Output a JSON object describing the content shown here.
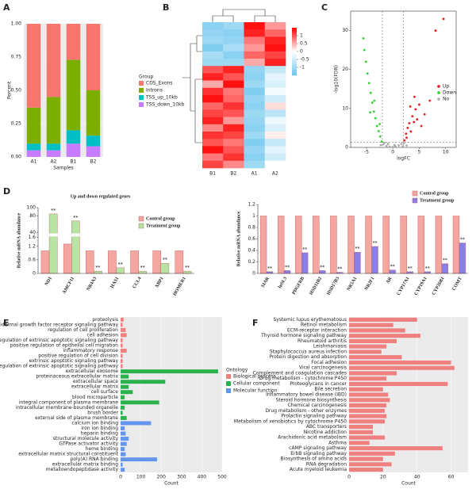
{
  "chart_data": [
    {
      "panel": "A",
      "type": "stacked_bar",
      "xlabel": "Samples",
      "ylabel": "Percent",
      "legend_title": "Group",
      "categories": [
        "A1",
        "A2",
        "B1",
        "B2"
      ],
      "series": [
        {
          "name": "CDS_Exons",
          "color": "#f8766d",
          "values": [
            0.63,
            0.55,
            0.27,
            0.5
          ]
        },
        {
          "name": "Introns",
          "color": "#7cae00",
          "values": [
            0.27,
            0.35,
            0.53,
            0.34
          ]
        },
        {
          "name": "TSS_up_10kb",
          "color": "#00bfc4",
          "values": [
            0.05,
            0.05,
            0.1,
            0.08
          ]
        },
        {
          "name": "TSS_down_10kb",
          "color": "#c77cff",
          "values": [
            0.05,
            0.05,
            0.1,
            0.08
          ]
        }
      ],
      "ylim": [
        0,
        1
      ],
      "yticks": [
        {
          "value": 0,
          "label": "0.00"
        },
        {
          "value": 0.25,
          "label": "0.25"
        },
        {
          "value": 0.5,
          "label": "0.50"
        },
        {
          "value": 0.75,
          "label": "0.75"
        },
        {
          "value": 1,
          "label": "1.00"
        }
      ],
      "grid": true
    },
    {
      "panel": "B",
      "type": "heatmap",
      "columns": [
        "B1",
        "B2",
        "A1",
        "A2"
      ],
      "zlim": [
        -1.5,
        1.5
      ],
      "colorbar_ticks": [
        1,
        0.5,
        0,
        -0.5,
        -1
      ],
      "values": [
        [
          -1.2,
          -1.0,
          1.4,
          0.6
        ],
        [
          -1.1,
          -1.2,
          1.3,
          0.9
        ],
        [
          -1.0,
          -1.1,
          0.8,
          1.3
        ],
        [
          -1.3,
          -0.9,
          0.6,
          1.4
        ],
        [
          -0.9,
          -1.2,
          0.9,
          1.1
        ],
        [
          -1.0,
          -1.0,
          0.5,
          1.3
        ],
        [
          1.0,
          1.3,
          -1.1,
          -0.6
        ],
        [
          1.3,
          1.0,
          -1.2,
          -0.3
        ],
        [
          0.5,
          1.4,
          -1.0,
          -0.4
        ],
        [
          1.2,
          0.8,
          -1.3,
          -0.1
        ],
        [
          1.4,
          0.9,
          -1.1,
          -0.5
        ],
        [
          0.9,
          1.2,
          -1.2,
          0.2
        ],
        [
          1.1,
          1.0,
          -1.0,
          -0.7
        ],
        [
          1.3,
          0.6,
          -1.1,
          -0.2
        ],
        [
          0.7,
          1.3,
          -1.2,
          -0.4
        ],
        [
          1.2,
          1.1,
          -1.0,
          0.1
        ],
        [
          1.0,
          0.8,
          -1.3,
          -0.6
        ],
        [
          1.4,
          1.0,
          -1.1,
          -0.3
        ],
        [
          0.8,
          1.2,
          -1.2,
          -0.5
        ],
        [
          1.1,
          0.7,
          -1.0,
          0.0
        ]
      ]
    },
    {
      "panel": "C",
      "type": "scatter",
      "xlabel": "logFC",
      "ylabel": "-log10(FDR)",
      "xlim": [
        -8,
        12
      ],
      "xticks": [
        -5,
        0,
        5,
        10
      ],
      "ylim": [
        0,
        35
      ],
      "yticks": [
        0,
        10,
        20,
        30
      ],
      "threshold_x": [
        -2,
        2
      ],
      "threshold_y": 1.3,
      "series": [
        {
          "name": "Up",
          "color": "#e41a1c",
          "x": [
            2.2,
            2.5,
            2.8,
            3.1,
            3.4,
            3.7,
            4,
            4.3,
            4.6,
            5,
            5.4,
            6,
            7,
            8.1,
            9.6,
            2.6,
            3.3,
            4.1
          ],
          "y": [
            1.8,
            3.5,
            5,
            6.2,
            4.1,
            8,
            6.5,
            9.8,
            7.2,
            11,
            5.5,
            8.5,
            12,
            30,
            33,
            2.5,
            10.5,
            13
          ]
        },
        {
          "name": "Down",
          "color": "#33cc33",
          "x": [
            -2.1,
            -2.4,
            -2.7,
            -3,
            -3.3,
            -3.6,
            -3.9,
            -4.2,
            -4.5,
            -4.8,
            -5.1,
            -5.4,
            -5.6,
            -2.5,
            -3.5,
            -4.3
          ],
          "y": [
            1.5,
            2.8,
            4.2,
            5.5,
            7.5,
            9.2,
            11.5,
            14,
            16.5,
            19,
            22,
            25,
            28,
            6,
            12,
            9
          ]
        },
        {
          "name": "No",
          "color": "#aaaaaa",
          "x": [
            -1.8,
            -1.2,
            -0.6,
            0,
            0.5,
            1.1,
            1.6,
            2.1,
            -0.9,
            0.3,
            1.9,
            -1.5,
            2.6,
            -2.3
          ],
          "y": [
            0.8,
            0.4,
            0.2,
            0.1,
            0.3,
            0.5,
            0.9,
            1.1,
            0.9,
            0.6,
            0.3,
            1.2,
            0.5,
            0.6
          ]
        }
      ]
    },
    {
      "panel": "D",
      "type": "bar",
      "title": "Up and down regulated genes",
      "ylabel": "Relative mRNA abundance",
      "categories": [
        "ND1",
        "AMCF11",
        "NR4A3",
        "HAS1",
        "CCL4",
        "XBP1",
        "HOMER1"
      ],
      "series": [
        {
          "name": "Control group",
          "color": "#f4a6a0",
          "values": [
            1,
            1.3,
            1,
            1,
            1,
            1,
            1
          ]
        },
        {
          "name": "Treatment group",
          "color": "#b7e4a3",
          "values": [
            85,
            68,
            0.1,
            0.25,
            0.1,
            0.45,
            0.1
          ]
        }
      ],
      "sig_labels": [
        "**",
        "**",
        "**",
        "**",
        "**",
        "**",
        "**"
      ],
      "ylim": [
        0,
        100
      ],
      "ybreak": [
        1.6,
        40
      ],
      "yticks": [
        0,
        0.6,
        1.2,
        1.6,
        40,
        80,
        100
      ]
    },
    {
      "type": "bar",
      "ylabel": "Relative mRNA abundance",
      "categories": [
        "SIAR",
        "lnSL3",
        "PDGFRB",
        "HSD11B2",
        "HSD17B3",
        "NR5A1",
        "NR2F1",
        "AR",
        "CYP17A1",
        "CYP19A1",
        "CYP26B1",
        "COMT"
      ],
      "series": [
        {
          "name": "Control group",
          "color": "#f4a6a0",
          "values": [
            1,
            1,
            1,
            1,
            1,
            1,
            1,
            1,
            1,
            1,
            1,
            1
          ]
        },
        {
          "name": "Treatment group",
          "color": "#8a7fe6",
          "values": [
            0.03,
            0.05,
            0.36,
            0.05,
            0.02,
            0.37,
            0.47,
            0.06,
            0.03,
            0.03,
            0.17,
            0.53
          ]
        }
      ],
      "sig_labels": [
        "**",
        "**",
        "**",
        "**",
        "**",
        "**",
        "**",
        "**",
        "**",
        "**",
        "**",
        "**"
      ],
      "ylim": [
        0,
        1.2
      ],
      "yticks": [
        0,
        0.2,
        0.4,
        0.6,
        0.8,
        1,
        1.2
      ]
    },
    {
      "panel": "E",
      "type": "hbar",
      "xlabel": "Count",
      "legend_title": "Ontology",
      "legend": [
        {
          "name": "Biological process",
          "color": "#f08080"
        },
        {
          "name": "Cellular component",
          "color": "#2bb24c"
        },
        {
          "name": "Molecular function",
          "color": "#6495ed"
        }
      ],
      "categories": [
        "proteolysis",
        "epidermal growth factor receptor signaling pathway",
        "regulation of cell proliferation",
        "cell adhesion",
        "positive regulation of extrinsic apoptotic signaling pathway",
        "positive regulation of epithelial cell migration",
        "inflammatory response",
        "positive regulation of cell division",
        "extrinsic apoptotic signaling pathway",
        "negative regulation of extrinsic apoptotic signaling pathway",
        "extracellular exosome",
        "proteinaceous extracellular matrix",
        "extracellular space",
        "extracellular matrix",
        "cell surface",
        "blood microparticle",
        "integral component of plasma membrane",
        "intracellular membrane-bounded organelle",
        "brush border",
        "external side of plasma membrane",
        "calcium ion binding",
        "iron ion binding",
        "heparin binding",
        "structural molecule activity",
        "GTPase activator activity",
        "heme binding",
        "extracellular matrix structural constituent",
        "poly(A) RNA binding",
        "extracellular matrix binding",
        "metalloendopeptidase activity"
      ],
      "groups": [
        0,
        0,
        0,
        0,
        0,
        0,
        0,
        0,
        0,
        0,
        1,
        1,
        1,
        1,
        1,
        1,
        1,
        1,
        1,
        1,
        2,
        2,
        2,
        2,
        2,
        2,
        2,
        2,
        2,
        2
      ],
      "values": [
        15,
        10,
        25,
        30,
        10,
        10,
        30,
        10,
        10,
        10,
        480,
        40,
        220,
        40,
        60,
        20,
        190,
        20,
        10,
        30,
        150,
        20,
        25,
        40,
        30,
        20,
        25,
        180,
        10,
        20
      ],
      "xlim": [
        0,
        500
      ],
      "xticks": [
        0,
        100,
        200,
        300,
        400,
        500
      ],
      "grid": true
    },
    {
      "panel": "F",
      "type": "hbar",
      "xlabel": "Count",
      "color": "#f08080",
      "categories": [
        "Systemic lupus erythematosus",
        "Retinol metabolism",
        "ECM-receptor interaction",
        "Thyroid hormone signaling pathway",
        "Rheumatoid arthritis",
        "Leishmaniasis",
        "Staphylococcus aureus infection",
        "Protein digestion and absorption",
        "Focal adhesion",
        "Viral carcinogenesis",
        "Complement and coagulation cascades",
        "Drug metabolism - cytochrome P450",
        "Proteoglycans in cancer",
        "Bile secretion",
        "Inflammatory bowel disease (IBD)",
        "Steroid hormone biosynthesis",
        "Chemical carcinogenesis",
        "Drug metabolism - other enzymes",
        "Prolactin signaling pathway",
        "Metabolism of xenobiotics by cytochrome P450",
        "ABC transporters",
        "Nicotine addiction",
        "Arachidonic acid metabolism",
        "Asthma",
        "cAMP signaling pathway",
        "ErbB signaling pathway",
        "Biosynthesis of amino acids",
        "RNA degradation",
        "Acute myeloid leukemia"
      ],
      "values": [
        40,
        26,
        33,
        42,
        28,
        22,
        19,
        31,
        60,
        62,
        28,
        22,
        58,
        20,
        23,
        24,
        22,
        21,
        22,
        21,
        14,
        14,
        21,
        12,
        55,
        27,
        20,
        25,
        20
      ],
      "xlim": [
        0,
        70
      ],
      "xticks": [
        0,
        20,
        40,
        60
      ],
      "grid": true
    }
  ]
}
